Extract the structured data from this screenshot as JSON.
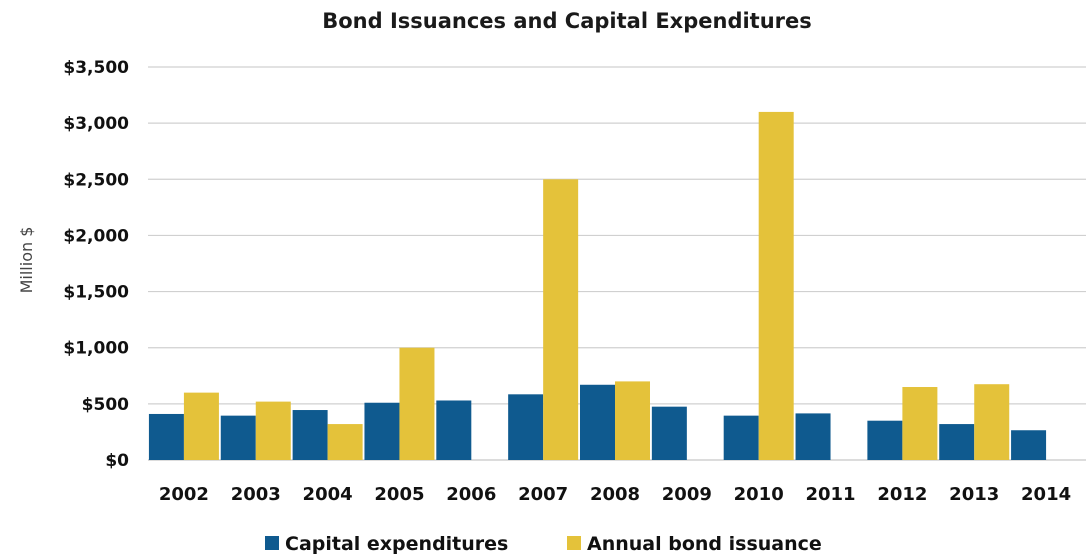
{
  "chart_data": {
    "type": "bar",
    "title": "Bond Issuances and Capital Expenditures",
    "ylabel": "Million $",
    "xlabel": "",
    "ylim": [
      0,
      3500
    ],
    "ytick_values": [
      0,
      500,
      1000,
      1500,
      2000,
      2500,
      3000,
      3500
    ],
    "ytick_labels": [
      "$0",
      "$500",
      "$1,000",
      "$1,500",
      "$2,000",
      "$2,500",
      "$3,000",
      "$3,500"
    ],
    "categories": [
      "2002",
      "2003",
      "2004",
      "2005",
      "2006",
      "2007",
      "2008",
      "2009",
      "2010",
      "2011",
      "2012",
      "2013",
      "2014"
    ],
    "series": [
      {
        "name": "Capital expenditures",
        "color": "#0f5a8f",
        "values": [
          410,
          395,
          445,
          510,
          530,
          585,
          670,
          475,
          395,
          415,
          350,
          320,
          265
        ]
      },
      {
        "name": "Annual bond issuance",
        "color": "#e4c23a",
        "values": [
          600,
          520,
          320,
          1000,
          null,
          2500,
          700,
          null,
          3100,
          null,
          650,
          675,
          null
        ]
      }
    ],
    "grid": true,
    "legend_position": "bottom"
  }
}
